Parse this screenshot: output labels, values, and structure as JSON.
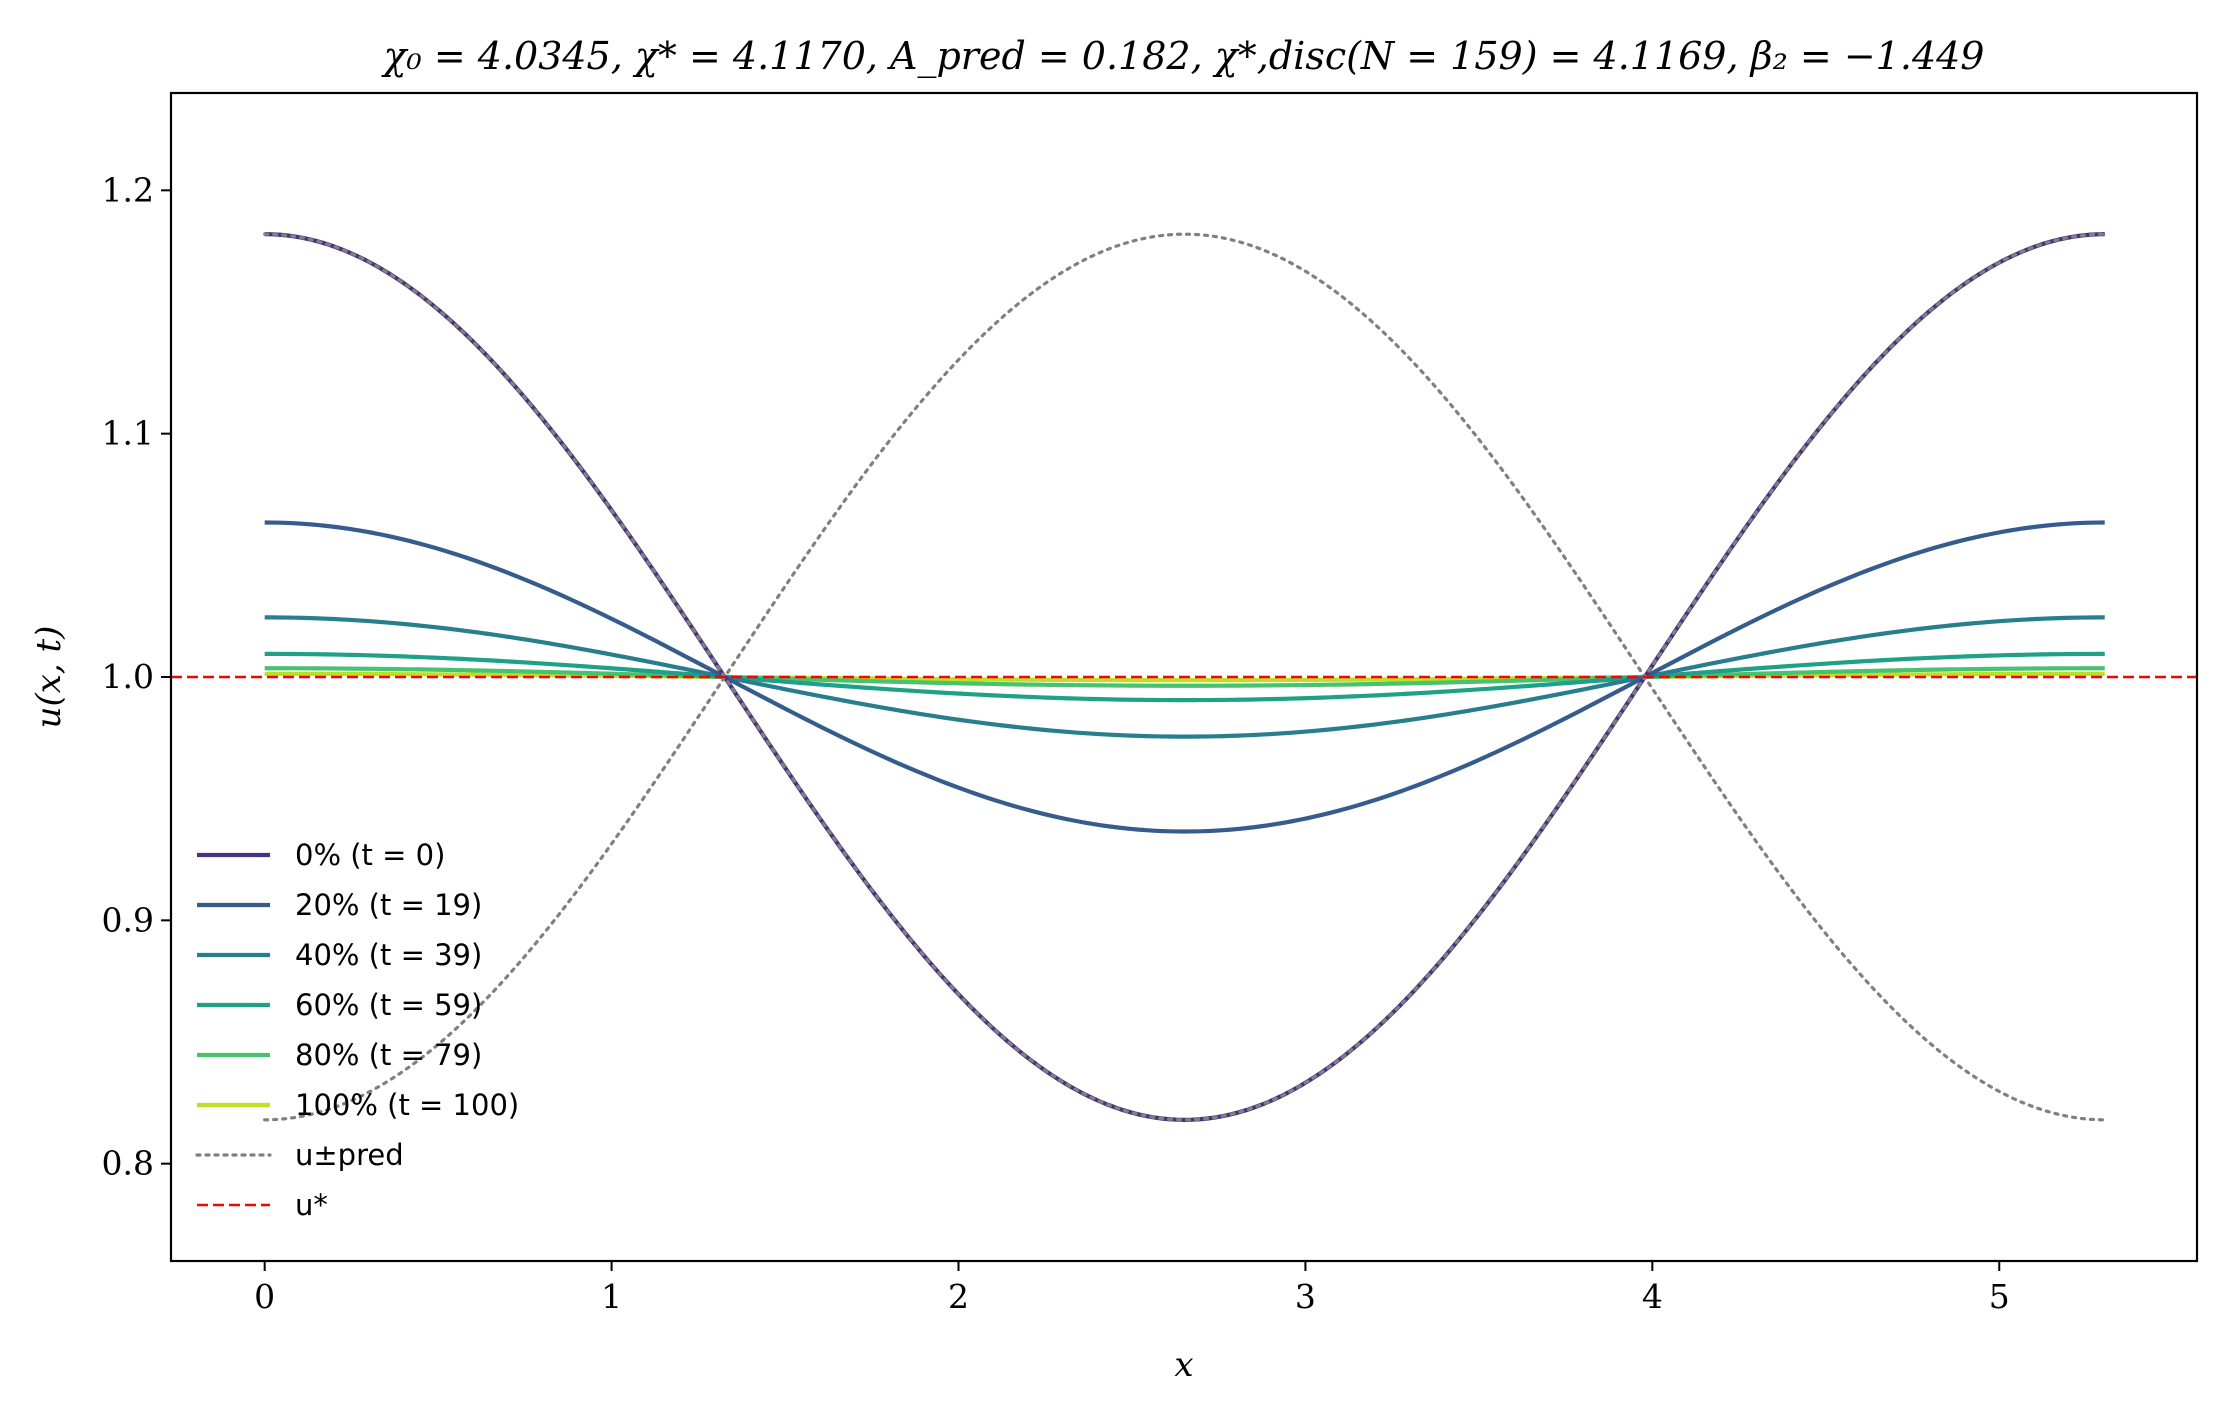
{
  "chart_data": {
    "type": "line",
    "title": "χ₀ = 4.0345,  χ* = 4.1170,  A_pred = 0.182,  χ*,disc(N = 159) = 4.1169,  β₂ = −1.449",
    "xlabel": "x",
    "ylabel": "u(x, t)",
    "xlim": [
      -0.27,
      5.57
    ],
    "ylim": [
      0.76,
      1.24
    ],
    "xticks": [
      0,
      1,
      2,
      3,
      4,
      5
    ],
    "xtick_labels": [
      "0",
      "1",
      "2",
      "3",
      "4",
      "5"
    ],
    "yticks": [
      0.8,
      0.9,
      1.0,
      1.1,
      1.2
    ],
    "ytick_labels": [
      "0.8",
      "0.9",
      "1.0",
      "1.1",
      "1.2"
    ],
    "grid": false,
    "legend_position": "lower-left",
    "x_domain": [
      0,
      5.304
    ],
    "series": [
      {
        "name": "0% (t = 0)",
        "style": "solid",
        "color": "#46327e",
        "amplitude": 0.182
      },
      {
        "name": "20% (t = 19)",
        "style": "solid",
        "color": "#365c8d",
        "amplitude": 0.0635
      },
      {
        "name": "40% (t = 39)",
        "style": "solid",
        "color": "#277f8e",
        "amplitude": 0.0245
      },
      {
        "name": "60% (t = 59)",
        "style": "solid",
        "color": "#1fa187",
        "amplitude": 0.0095
      },
      {
        "name": "80% (t = 79)",
        "style": "solid",
        "color": "#4ac16d",
        "amplitude": 0.0036
      },
      {
        "name": "100% (t = 100)",
        "style": "solid",
        "color": "#bddf26",
        "amplitude": 0.0013
      },
      {
        "name": "u±pred",
        "style": "dotted",
        "color": "#808080",
        "amplitude": 0.182,
        "both_signs": true
      },
      {
        "name": "u*",
        "style": "dashed",
        "color": "#ff0000",
        "constant": 1.0
      }
    ]
  }
}
